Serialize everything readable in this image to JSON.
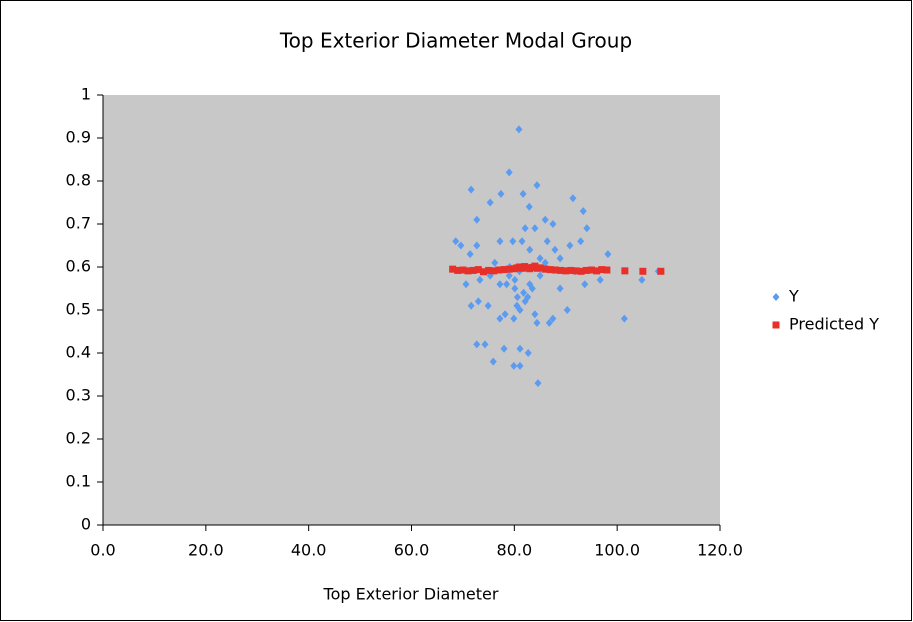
{
  "chart_data": {
    "type": "scatter",
    "title": "Top Exterior Diameter Modal Group",
    "x_label": "Top Exterior Diameter",
    "xlim": [
      0,
      120
    ],
    "ylim": [
      0,
      1
    ],
    "xticks": [
      {
        "value": 0,
        "label": "0.0"
      },
      {
        "value": 20,
        "label": "20.0"
      },
      {
        "value": 40,
        "label": "40.0"
      },
      {
        "value": 60,
        "label": "60.0"
      },
      {
        "value": 80,
        "label": "80.0"
      },
      {
        "value": 100,
        "label": "100.0"
      },
      {
        "value": 120,
        "label": "120.0"
      }
    ],
    "yticks": [
      0,
      0.1,
      0.2,
      0.3,
      0.4,
      0.5,
      0.6,
      0.7,
      0.8,
      0.9,
      1
    ],
    "grid": false,
    "legend": "right",
    "background": "#c8c8c8",
    "series": [
      {
        "name": "Y",
        "color": "#5b9bf0",
        "marker": "diamond",
        "x": [
          80.9,
          79.0,
          71.6,
          84.4,
          77.4,
          75.3,
          81.7,
          82.9,
          72.7,
          91.4,
          93.4,
          94.1,
          86.0,
          68.6,
          69.6,
          72.7,
          77.2,
          79.7,
          81.5,
          86.4,
          90.8,
          92.9,
          98.2,
          71.4,
          76.2,
          85.0,
          87.9,
          70.6,
          73.3,
          77.2,
          80.1,
          83.0,
          88.9,
          93.7,
          96.7,
          104.8,
          108.0,
          71.6,
          73.0,
          74.9,
          78.2,
          81.1,
          84.0,
          87.5,
          90.3,
          101.4,
          77.2,
          86.8,
          79.9,
          84.4,
          72.7,
          74.3,
          78.0,
          81.1,
          82.7,
          75.9,
          79.9,
          81.1,
          84.6,
          81.0,
          80.1,
          82.1,
          79.1,
          83.0,
          85.0,
          79.0,
          80.6,
          86.0,
          88.9,
          91.9,
          75.3,
          84.0,
          82.1,
          87.5,
          86.0,
          81.8,
          83.5,
          80.5,
          82.6,
          78.5
        ],
        "values": [
          0.92,
          0.82,
          0.78,
          0.79,
          0.77,
          0.75,
          0.77,
          0.74,
          0.71,
          0.76,
          0.73,
          0.69,
          0.71,
          0.66,
          0.65,
          0.65,
          0.66,
          0.66,
          0.66,
          0.66,
          0.65,
          0.66,
          0.63,
          0.63,
          0.61,
          0.62,
          0.64,
          0.56,
          0.57,
          0.56,
          0.55,
          0.56,
          0.55,
          0.56,
          0.57,
          0.57,
          0.59,
          0.51,
          0.52,
          0.51,
          0.49,
          0.5,
          0.49,
          0.48,
          0.5,
          0.48,
          0.48,
          0.47,
          0.48,
          0.47,
          0.42,
          0.42,
          0.41,
          0.41,
          0.4,
          0.38,
          0.37,
          0.37,
          0.33,
          0.59,
          0.57,
          0.52,
          0.6,
          0.64,
          0.58,
          0.58,
          0.53,
          0.6,
          0.62,
          0.59,
          0.58,
          0.69,
          0.69,
          0.7,
          0.61,
          0.54,
          0.55,
          0.51,
          0.53,
          0.56
        ]
      },
      {
        "name": "Predicted Y",
        "color": "#e8302a",
        "marker": "square",
        "x": [
          68,
          69,
          70,
          71,
          72,
          73,
          74,
          75,
          76,
          77,
          78,
          79,
          80,
          80.5,
          81,
          81.5,
          82,
          82.5,
          83,
          83.5,
          84,
          84.5,
          85,
          86,
          87,
          88,
          89,
          90,
          91,
          92,
          93,
          94,
          95,
          96,
          97,
          98,
          101.5,
          105,
          108.5
        ],
        "values": [
          0.595,
          0.592,
          0.593,
          0.591,
          0.592,
          0.594,
          0.589,
          0.592,
          0.591,
          0.593,
          0.594,
          0.595,
          0.596,
          0.598,
          0.6,
          0.597,
          0.601,
          0.598,
          0.596,
          0.599,
          0.602,
          0.597,
          0.598,
          0.595,
          0.594,
          0.593,
          0.592,
          0.591,
          0.592,
          0.591,
          0.59,
          0.592,
          0.593,
          0.591,
          0.594,
          0.593,
          0.591,
          0.59,
          0.59
        ]
      }
    ]
  }
}
